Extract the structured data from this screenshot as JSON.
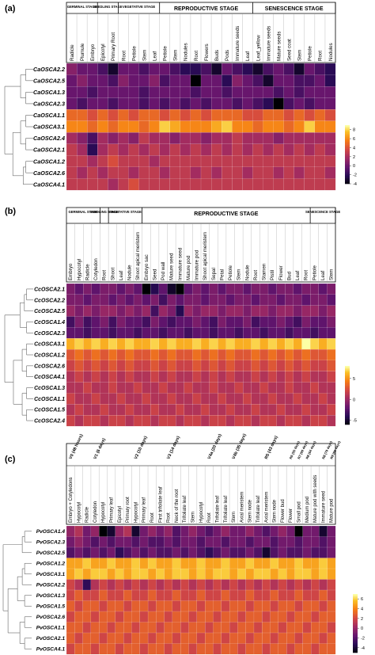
{
  "chart_data": [
    {
      "type": "heatmap",
      "panel_label": "(a)",
      "stage_headers": [
        "GERMINAL STAGE",
        "SEEDLING STAGE",
        "VEGETATIVE STAGE",
        "REPRODUCTIVE STAGE",
        "SENESCENCE STAGE"
      ],
      "columns": [
        "Radicle",
        "Plumule",
        "Embryo",
        "Epicotyl",
        "Primary Root",
        "Root",
        "Petiole",
        "Stem",
        "Leaf",
        "Petiole",
        "Stem",
        "Nodules",
        "Root",
        "Flowers",
        "Buds",
        "Pods",
        "Immature seeds",
        "Leaf",
        "Leaf_yellow",
        "Immature seeds",
        "Mature seeds",
        "Seed coat",
        "Stem",
        "Petiole",
        "Root",
        "Nodules"
      ],
      "rows": [
        "CaOSCA2.2",
        "CaOSCA2.5",
        "CaOSCA1.3",
        "CaOSCA2.3",
        "CaOSCA1.1",
        "CaOSCA3.1",
        "CaOSCA2.4",
        "CaOSCA2.1",
        "CaOSCA1.2",
        "CaOSCA2.6",
        "CaOSCA4.1"
      ],
      "colorbar_ticks": [
        "8",
        "6",
        "4",
        "2",
        "0",
        "-2",
        "-4"
      ],
      "vmin": -4,
      "vmax": 9,
      "values": [
        [
          1,
          0,
          0,
          -1,
          -3,
          0,
          0,
          -1,
          0,
          0,
          -1,
          -2,
          -2,
          -1,
          -3,
          0,
          -1,
          -2,
          -3,
          -1,
          0,
          -1,
          -3,
          0,
          -1,
          -2
        ],
        [
          0,
          1,
          0,
          0,
          -1,
          1,
          0,
          0,
          1,
          -1,
          0,
          0,
          -4,
          0,
          0,
          -2,
          1,
          0,
          -1,
          -3,
          0,
          0,
          -1,
          -1,
          0,
          -2
        ],
        [
          0,
          0,
          -1,
          0,
          0,
          0,
          0,
          -1,
          0,
          0,
          0,
          0,
          -1,
          0,
          0,
          -1,
          0,
          0,
          0,
          0,
          -1,
          0,
          -1,
          0,
          0,
          0
        ],
        [
          0,
          -1,
          0,
          0,
          -1,
          0,
          0,
          -1,
          0,
          -1,
          0,
          -1,
          0,
          -1,
          0,
          0,
          -1,
          0,
          -1,
          -2,
          -4,
          -1,
          0,
          -1,
          0,
          0
        ],
        [
          5,
          5,
          4,
          5,
          4,
          5,
          4,
          5,
          5,
          4,
          5,
          4,
          5,
          4,
          5,
          5,
          5,
          4,
          4,
          5,
          5,
          4,
          5,
          4,
          5,
          4
        ],
        [
          6,
          6,
          5,
          6,
          5,
          6,
          6,
          5,
          6,
          8,
          7,
          6,
          6,
          6,
          7,
          8,
          6,
          6,
          5,
          6,
          6,
          5,
          6,
          8,
          6,
          6
        ],
        [
          2,
          1,
          -1,
          2,
          1,
          2,
          1,
          3,
          2,
          2,
          1,
          2,
          2,
          1,
          2,
          2,
          3,
          2,
          2,
          2,
          1,
          2,
          2,
          2,
          2,
          2
        ],
        [
          3,
          2,
          -2,
          2,
          3,
          2,
          3,
          2,
          3,
          2,
          3,
          2,
          3,
          2,
          3,
          2,
          3,
          2,
          3,
          2,
          3,
          2,
          3,
          2,
          3,
          2
        ],
        [
          3,
          3,
          2,
          3,
          4,
          3,
          3,
          3,
          2,
          3,
          3,
          3,
          3,
          3,
          3,
          3,
          3,
          3,
          3,
          3,
          3,
          3,
          3,
          3,
          3,
          3
        ],
        [
          3,
          2,
          3,
          2,
          3,
          3,
          2,
          3,
          3,
          2,
          3,
          3,
          2,
          3,
          2,
          3,
          3,
          2,
          3,
          3,
          2,
          3,
          2,
          3,
          3,
          2
        ],
        [
          3,
          3,
          3,
          3,
          2,
          3,
          4,
          3,
          3,
          3,
          3,
          3,
          3,
          3,
          3,
          3,
          3,
          3,
          3,
          3,
          3,
          3,
          3,
          3,
          3,
          3
        ]
      ]
    },
    {
      "type": "heatmap",
      "panel_label": "(b)",
      "stage_headers": [
        "GERMINAL STAGE",
        "SEEDLING STAGE",
        "VEGETATIVE STAGE",
        "REPRODUCTIVE STAGE",
        "SENESCENCE STAGE"
      ],
      "columns": [
        "Embryo",
        "Hypocotyl",
        "Radicle",
        "Cotyledon",
        "Root",
        "Shoot",
        "Leaf",
        "Nodule",
        "Shoot apical meristem",
        "Embryo sac",
        "Seed",
        "Pod wall",
        "Mature seed",
        "Immature seed",
        "Mature pod",
        "Immature pod",
        "Shoot apical meristem",
        "Sepal",
        "Petal",
        "Petiole",
        "Stem",
        "Nodule",
        "Root",
        "Stamen",
        "Pistil",
        "Flower",
        "Bud",
        "Leaf",
        "Root",
        "Petiole",
        "Leaf",
        "Stem"
      ],
      "rows": [
        "CcOSCA2.1",
        "CcOSCA2.2",
        "CcOSCA2.5",
        "CcOSCA1.4",
        "CcOSCA2.3",
        "CcOSCA3.1",
        "CcOSCA1.2",
        "CcOSCA2.6",
        "CcOSCA4.1",
        "CcOSCA1.3",
        "CcOSCA1.1",
        "CcOSCA1.5",
        "CcOSCA2.4"
      ],
      "colorbar_ticks": [
        "5",
        "0",
        "-5"
      ],
      "vmin": -6,
      "vmax": 8,
      "values": [
        [
          -1,
          -2,
          -1,
          -2,
          -1,
          -1,
          -2,
          -1,
          -2,
          -6,
          -4,
          -2,
          -5,
          -6,
          -2,
          -1,
          -2,
          -1,
          -2,
          -1,
          -1,
          -2,
          -1,
          -1,
          -2,
          -1,
          -1,
          -2,
          -1,
          -1,
          -2,
          -1
        ],
        [
          -1,
          -1,
          -2,
          -1,
          -1,
          -2,
          -1,
          -2,
          -1,
          -2,
          -1,
          -3,
          -1,
          -2,
          -1,
          -1,
          -2,
          -1,
          -1,
          -2,
          -1,
          -1,
          -2,
          -1,
          -1,
          -2,
          -1,
          -1,
          -2,
          -1,
          -1,
          -2
        ],
        [
          0,
          -1,
          0,
          -1,
          0,
          0,
          -1,
          0,
          -1,
          0,
          -3,
          0,
          -1,
          -4,
          0,
          -1,
          0,
          0,
          -1,
          0,
          0,
          -1,
          0,
          0,
          -1,
          0,
          0,
          -1,
          0,
          0,
          -1,
          0
        ],
        [
          -3,
          -1,
          -3,
          -2,
          -1,
          -3,
          -1,
          -2,
          -2,
          -3,
          -1,
          -2,
          -3,
          -2,
          -2,
          -1,
          -2,
          -3,
          -1,
          -2,
          -2,
          -1,
          -3,
          -2,
          -2,
          -1,
          -2,
          -3,
          -1,
          -2,
          -2,
          -1
        ],
        [
          -2,
          -2,
          -3,
          -2,
          -2,
          -3,
          -2,
          -2,
          -3,
          -2,
          -2,
          -3,
          -2,
          -2,
          -3,
          -2,
          -2,
          -3,
          -2,
          -2,
          -3,
          -2,
          -2,
          -3,
          -2,
          -2,
          -3,
          -2,
          -2,
          -3,
          -2,
          -2
        ],
        [
          6,
          7,
          6,
          7,
          6,
          7,
          6,
          7,
          6,
          6,
          7,
          6,
          7,
          6,
          6,
          7,
          6,
          7,
          6,
          7,
          6,
          6,
          7,
          6,
          7,
          6,
          7,
          6,
          8,
          7,
          6,
          7
        ],
        [
          3,
          4,
          3,
          4,
          3,
          4,
          3,
          4,
          3,
          3,
          4,
          3,
          4,
          3,
          3,
          4,
          3,
          4,
          3,
          4,
          3,
          3,
          4,
          3,
          4,
          3,
          4,
          3,
          4,
          3,
          3,
          4
        ],
        [
          2,
          3,
          2,
          3,
          2,
          3,
          2,
          3,
          2,
          2,
          3,
          2,
          3,
          2,
          2,
          3,
          2,
          3,
          2,
          3,
          2,
          2,
          3,
          2,
          3,
          2,
          3,
          2,
          3,
          2,
          2,
          3
        ],
        [
          1,
          2,
          1,
          2,
          1,
          2,
          1,
          2,
          1,
          1,
          2,
          1,
          2,
          1,
          1,
          2,
          1,
          2,
          1,
          2,
          1,
          1,
          2,
          1,
          2,
          1,
          2,
          1,
          2,
          1,
          1,
          2
        ],
        [
          1,
          1,
          2,
          1,
          1,
          2,
          1,
          1,
          2,
          1,
          1,
          2,
          1,
          1,
          2,
          1,
          1,
          2,
          1,
          1,
          2,
          1,
          1,
          2,
          1,
          1,
          2,
          1,
          1,
          2,
          1,
          1
        ],
        [
          2,
          1,
          1,
          2,
          1,
          1,
          2,
          1,
          1,
          2,
          1,
          1,
          2,
          1,
          1,
          2,
          1,
          1,
          2,
          1,
          1,
          2,
          1,
          1,
          2,
          1,
          1,
          2,
          1,
          1,
          2,
          1
        ],
        [
          1,
          2,
          1,
          1,
          2,
          1,
          1,
          2,
          1,
          1,
          2,
          1,
          1,
          2,
          1,
          1,
          2,
          1,
          1,
          2,
          1,
          1,
          2,
          1,
          1,
          2,
          1,
          1,
          2,
          1,
          1,
          2
        ],
        [
          2,
          1,
          2,
          2,
          1,
          2,
          2,
          1,
          2,
          2,
          1,
          2,
          2,
          1,
          2,
          2,
          1,
          2,
          2,
          1,
          2,
          2,
          1,
          2,
          2,
          1,
          2,
          2,
          1,
          2,
          2,
          1
        ]
      ]
    },
    {
      "type": "heatmap",
      "panel_label": "(c)",
      "stage_headers": [
        "V0 (48 hours)",
        "V1 (6 days)",
        "V2 (10 days)",
        "V3 (14 days)",
        "V4a (20 days)",
        "V4b (35 days)",
        "R5 (43 days)",
        "R6 (55 days)",
        "R7 (60 days)",
        "R8 (64 days)",
        "R8 (79 days)",
        "R9 (86 days)"
      ],
      "columns": [
        "Embryo + Cotyledons",
        "Hypocotyl",
        "Radicle",
        "Cotyledon",
        "Hypocotyl",
        "Primary leaf",
        "Epicotyl",
        "Primary root",
        "Hypocotyl",
        "Primary leaf",
        "Root",
        "First trifoliate leaf",
        "Root",
        "Neck of the root",
        "Trifoliate leaf",
        "Stem",
        "Hypocotyl",
        "Root",
        "Trifoliate leaf",
        "Trifoliate leaf",
        "Stem",
        "Axial meristem",
        "Stem node",
        "Trifoliate leaf",
        "Axial meristem",
        "Stem node",
        "Flower bud",
        "Flower",
        "Small pod",
        "Medium pod",
        "Mature pod with seeds",
        "Immature seed",
        "Mature pod"
      ],
      "rows": [
        "PvOSCA1.4",
        "PvOSCA2.3",
        "PvOSCA2.5",
        "PvOSCA1.2",
        "PvOSCA3.1",
        "PvOSCA2.2",
        "PvOSCA1.3",
        "PvOSCA1.5",
        "PvOSCA2.6",
        "PvOSCA1.1",
        "PvOSCA2.1",
        "PvOSCA4.1"
      ],
      "colorbar_ticks": [
        "6",
        "4",
        "2",
        "0",
        "-2",
        "-4"
      ],
      "vmin": -5,
      "vmax": 7,
      "values": [
        [
          0,
          1,
          -1,
          0,
          -5,
          -4,
          0,
          1,
          -4,
          -1,
          0,
          -1,
          0,
          -2,
          -1,
          0,
          -1,
          -2,
          -1,
          0,
          -1,
          -1,
          0,
          -1,
          -2,
          -1,
          0,
          -1,
          -5,
          -1,
          -1,
          -4,
          -1
        ],
        [
          -1,
          0,
          -1,
          -2,
          -1,
          -2,
          -1,
          -1,
          -2,
          -1,
          -2,
          -2,
          -1,
          -2,
          -1,
          -1,
          -2,
          -1,
          -1,
          -2,
          -1,
          -1,
          -2,
          -1,
          -1,
          -2,
          -1,
          -1,
          -2,
          -1,
          -1,
          -2,
          -1
        ],
        [
          -2,
          -1,
          -2,
          -1,
          -2,
          -1,
          -3,
          -2,
          -1,
          -2,
          -1,
          -2,
          -2,
          -1,
          -2,
          -1,
          -2,
          -3,
          -2,
          -1,
          -2,
          -2,
          -1,
          -2,
          -4,
          -2,
          -1,
          -2,
          -2,
          -1,
          -2,
          -2,
          -1
        ],
        [
          5,
          5,
          6,
          5,
          5,
          6,
          5,
          5,
          6,
          5,
          6,
          5,
          5,
          6,
          5,
          5,
          6,
          5,
          5,
          6,
          5,
          5,
          6,
          5,
          5,
          6,
          5,
          5,
          6,
          5,
          5,
          6,
          5
        ],
        [
          5,
          6,
          5,
          6,
          6,
          5,
          6,
          5,
          6,
          6,
          5,
          6,
          5,
          6,
          6,
          5,
          6,
          5,
          6,
          6,
          5,
          6,
          5,
          6,
          6,
          5,
          6,
          5,
          6,
          6,
          5,
          6,
          5
        ],
        [
          2,
          1,
          -3,
          1,
          2,
          1,
          2,
          1,
          2,
          1,
          2,
          1,
          2,
          1,
          2,
          1,
          2,
          1,
          2,
          1,
          2,
          1,
          2,
          1,
          2,
          1,
          2,
          1,
          2,
          1,
          2,
          1,
          2
        ],
        [
          2,
          3,
          2,
          2,
          3,
          2,
          2,
          3,
          2,
          2,
          3,
          2,
          2,
          3,
          2,
          2,
          3,
          2,
          2,
          3,
          2,
          2,
          3,
          2,
          2,
          3,
          2,
          2,
          3,
          2,
          2,
          3,
          2
        ],
        [
          3,
          2,
          3,
          3,
          2,
          3,
          3,
          2,
          3,
          3,
          2,
          3,
          3,
          2,
          3,
          3,
          2,
          3,
          3,
          2,
          3,
          3,
          2,
          3,
          3,
          2,
          3,
          3,
          2,
          3,
          3,
          2,
          3
        ],
        [
          2,
          3,
          3,
          2,
          3,
          3,
          2,
          3,
          3,
          2,
          3,
          3,
          2,
          3,
          3,
          2,
          3,
          3,
          2,
          3,
          3,
          2,
          3,
          3,
          2,
          3,
          3,
          2,
          3,
          3,
          2,
          3,
          3
        ],
        [
          3,
          3,
          2,
          3,
          3,
          2,
          3,
          3,
          2,
          3,
          3,
          2,
          3,
          3,
          2,
          3,
          3,
          2,
          3,
          3,
          2,
          3,
          3,
          2,
          3,
          3,
          2,
          3,
          3,
          2,
          3,
          3,
          2
        ],
        [
          3,
          2,
          3,
          3,
          2,
          3,
          3,
          2,
          3,
          3,
          2,
          3,
          3,
          2,
          3,
          3,
          2,
          3,
          3,
          2,
          3,
          3,
          2,
          3,
          3,
          2,
          3,
          3,
          2,
          3,
          3,
          2,
          3
        ],
        [
          2,
          3,
          3,
          2,
          3,
          3,
          2,
          3,
          3,
          2,
          3,
          3,
          2,
          3,
          3,
          2,
          3,
          3,
          2,
          3,
          3,
          2,
          3,
          3,
          2,
          3,
          3,
          2,
          3,
          3,
          2,
          3,
          3
        ]
      ]
    }
  ]
}
